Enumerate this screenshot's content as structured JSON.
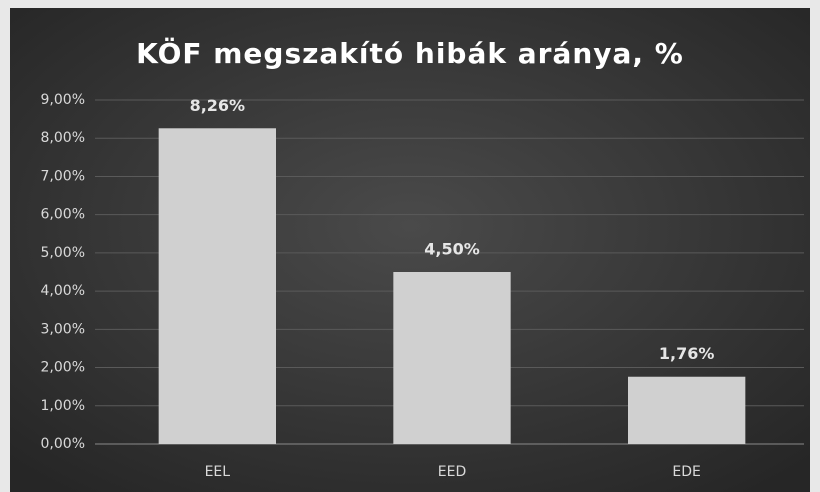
{
  "chart_data": {
    "type": "bar",
    "title": "KÖF megszakító hibák aránya, %",
    "categories": [
      "EEL",
      "EED",
      "EDE"
    ],
    "values": [
      8.26,
      4.5,
      1.76
    ],
    "value_labels": [
      "8,26%",
      "4,50%",
      "1,76%"
    ],
    "color": "#d0d0d0",
    "ylim": [
      0,
      9
    ],
    "yticks": [
      {
        "value": 0,
        "label": "0,00%"
      },
      {
        "value": 1,
        "label": "1,00%"
      },
      {
        "value": 2,
        "label": "2,00%"
      },
      {
        "value": 3,
        "label": "3,00%"
      },
      {
        "value": 4,
        "label": "4,00%"
      },
      {
        "value": 5,
        "label": "5,00%"
      },
      {
        "value": 6,
        "label": "6,00%"
      },
      {
        "value": 7,
        "label": "7,00%"
      },
      {
        "value": 8,
        "label": "8,00%"
      },
      {
        "value": 9,
        "label": "9,00%"
      }
    ],
    "grid": true
  }
}
